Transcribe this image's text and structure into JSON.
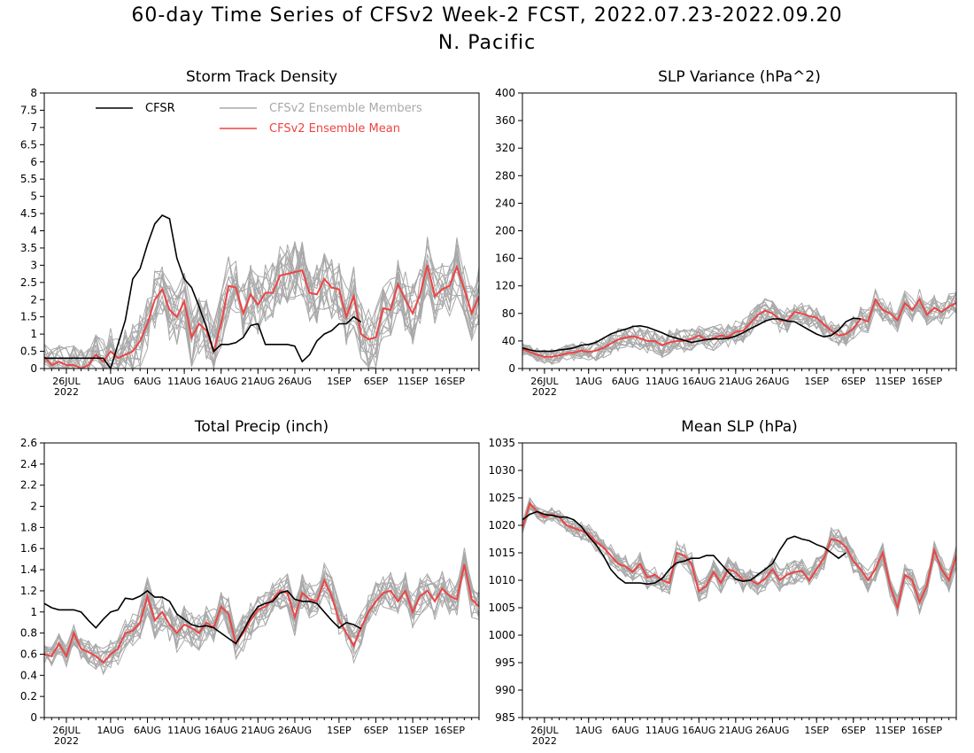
{
  "page": {
    "title_line1": "60-day Time Series of CFSv2 Week-2 FCST, 2022.07.23-2022.09.20",
    "title_line2": "N. Pacific"
  },
  "colors": {
    "cfsr": "#000000",
    "members": "#a9a9a9",
    "mean": "#ee4444",
    "axis": "#000000"
  },
  "chart_data": [
    {
      "type": "line",
      "title": "Storm Track Density",
      "ylim": [
        0,
        8
      ],
      "yticks": [
        0,
        0.5,
        1,
        1.5,
        2,
        2.5,
        3,
        3.5,
        4,
        4.5,
        5,
        5.5,
        6,
        6.5,
        7,
        7.5,
        8
      ],
      "xlim": [
        0,
        59
      ],
      "xticks": [
        {
          "x": 3,
          "label": "26JUL",
          "sub": "2022"
        },
        {
          "x": 9,
          "label": "1AUG"
        },
        {
          "x": 14,
          "label": "6AUG"
        },
        {
          "x": 19,
          "label": "11AUG"
        },
        {
          "x": 24,
          "label": "16AUG"
        },
        {
          "x": 29,
          "label": "21AUG"
        },
        {
          "x": 34,
          "label": "26AUG"
        },
        {
          "x": 40,
          "label": "1SEP"
        },
        {
          "x": 45,
          "label": "6SEP"
        },
        {
          "x": 50,
          "label": "11SEP"
        },
        {
          "x": 55,
          "label": "16SEP"
        }
      ],
      "legend": {
        "placement": "top",
        "entries": [
          {
            "label": "CFSR",
            "color": "#000000"
          },
          {
            "label": "CFSv2 Ensemble Members",
            "color": "#a9a9a9"
          },
          {
            "label": "CFSv2 Ensemble Mean",
            "color": "#ee4444"
          }
        ]
      },
      "cfsr": [
        0.3,
        0.3,
        0.3,
        0.3,
        0.3,
        0.3,
        0.3,
        0.3,
        0.3,
        0,
        0.7,
        1.4,
        2.6,
        2.9,
        3.6,
        4.2,
        4.45,
        4.35,
        3.2,
        2.6,
        2.35,
        1.8,
        1.2,
        0.5,
        0.7,
        0.7,
        0.75,
        0.9,
        1.25,
        1.3,
        0.7,
        0.7,
        0.7,
        0.7,
        0.65,
        0.2,
        0.4,
        0.8,
        1.0,
        1.1,
        1.3,
        1.3,
        1.5,
        1.35
      ],
      "mean": [
        0.35,
        0.1,
        0.2,
        0.1,
        0.1,
        0.0,
        0.1,
        0.4,
        0.2,
        0.5,
        0.3,
        0.4,
        0.5,
        0.8,
        1.3,
        2.0,
        2.3,
        1.7,
        1.5,
        1.95,
        0.9,
        1.3,
        1.1,
        0.5,
        1.3,
        2.4,
        2.35,
        1.6,
        2.15,
        1.85,
        2.2,
        2.2,
        2.7,
        2.75,
        2.8,
        2.85,
        2.2,
        2.15,
        2.6,
        2.35,
        2.3,
        1.5,
        2.1,
        1.0,
        0.85,
        0.9,
        1.75,
        1.7,
        2.45,
        2.0,
        1.6,
        2.15,
        3.0,
        2.1,
        2.3,
        2.4,
        2.95,
        2.3,
        1.6,
        2.1
      ],
      "members_spread": 0.9,
      "members_count": 16
    },
    {
      "type": "line",
      "title": "SLP Variance (hPa^2)",
      "ylim": [
        0,
        400
      ],
      "yticks": [
        0,
        40,
        80,
        120,
        160,
        200,
        240,
        280,
        320,
        360,
        400
      ],
      "xlim": [
        0,
        59
      ],
      "xticks": [
        {
          "x": 3,
          "label": "26JUL",
          "sub": "2022"
        },
        {
          "x": 9,
          "label": "1AUG"
        },
        {
          "x": 14,
          "label": "6AUG"
        },
        {
          "x": 19,
          "label": "11AUG"
        },
        {
          "x": 24,
          "label": "16AUG"
        },
        {
          "x": 29,
          "label": "21AUG"
        },
        {
          "x": 34,
          "label": "26AUG"
        },
        {
          "x": 40,
          "label": "1SEP"
        },
        {
          "x": 45,
          "label": "6SEP"
        },
        {
          "x": 50,
          "label": "11SEP"
        },
        {
          "x": 55,
          "label": "16SEP"
        }
      ],
      "cfsr": [
        30,
        27,
        25,
        25,
        25,
        27,
        28,
        30,
        34,
        35,
        38,
        44,
        50,
        54,
        57,
        61,
        62,
        60,
        56,
        52,
        47,
        44,
        41,
        38,
        40,
        42,
        43,
        43,
        44,
        47,
        52,
        58,
        63,
        69,
        72,
        72,
        69,
        68,
        62,
        56,
        50,
        46,
        48,
        56,
        68,
        73,
        72
      ],
      "mean": [
        28,
        24,
        20,
        17,
        17,
        19,
        22,
        23,
        26,
        24,
        26,
        30,
        36,
        42,
        45,
        47,
        44,
        40,
        40,
        34,
        38,
        40,
        40,
        43,
        48,
        42,
        44,
        48,
        46,
        53,
        55,
        66,
        78,
        84,
        80,
        70,
        70,
        82,
        80,
        76,
        74,
        64,
        55,
        48,
        50,
        58,
        72,
        68,
        100,
        85,
        80,
        70,
        95,
        85,
        100,
        78,
        88,
        82,
        90,
        95
      ],
      "members_spread": 18,
      "members_count": 16
    },
    {
      "type": "line",
      "title": "Total Precip (inch)",
      "ylim": [
        0,
        2.6
      ],
      "yticks": [
        0,
        0.2,
        0.4,
        0.6,
        0.8,
        1,
        1.2,
        1.4,
        1.6,
        1.8,
        2,
        2.2,
        2.4,
        2.6
      ],
      "xlim": [
        0,
        59
      ],
      "xticks": [
        {
          "x": 3,
          "label": "26JUL",
          "sub": "2022"
        },
        {
          "x": 9,
          "label": "1AUG"
        },
        {
          "x": 14,
          "label": "6AUG"
        },
        {
          "x": 19,
          "label": "11AUG"
        },
        {
          "x": 24,
          "label": "16AUG"
        },
        {
          "x": 29,
          "label": "21AUG"
        },
        {
          "x": 34,
          "label": "26AUG"
        },
        {
          "x": 40,
          "label": "1SEP"
        },
        {
          "x": 45,
          "label": "6SEP"
        },
        {
          "x": 50,
          "label": "11SEP"
        },
        {
          "x": 55,
          "label": "16SEP"
        }
      ],
      "cfsr": [
        1.08,
        1.04,
        1.02,
        1.02,
        1.02,
        1.0,
        0.92,
        0.85,
        0.93,
        1.0,
        1.02,
        1.13,
        1.12,
        1.15,
        1.2,
        1.14,
        1.14,
        1.1,
        0.98,
        0.93,
        0.88,
        0.86,
        0.87,
        0.85,
        0.8,
        0.75,
        0.7,
        0.82,
        0.95,
        1.05,
        1.08,
        1.1,
        1.18,
        1.2,
        1.12,
        1.1,
        1.1,
        1.08,
        1.0,
        0.92,
        0.85,
        0.9,
        0.88,
        0.84
      ],
      "mean": [
        0.6,
        0.58,
        0.7,
        0.58,
        0.8,
        0.65,
        0.62,
        0.58,
        0.52,
        0.6,
        0.65,
        0.8,
        0.82,
        0.9,
        1.15,
        0.92,
        1.0,
        0.88,
        0.8,
        0.88,
        0.85,
        0.8,
        0.9,
        0.85,
        1.05,
        0.98,
        0.7,
        0.8,
        0.92,
        1.02,
        1.05,
        1.12,
        1.2,
        1.18,
        0.95,
        1.18,
        1.12,
        1.1,
        1.3,
        1.15,
        0.92,
        0.8,
        0.68,
        0.85,
        1.0,
        1.1,
        1.18,
        1.2,
        1.1,
        1.2,
        1.0,
        1.15,
        1.2,
        1.1,
        1.22,
        1.15,
        1.12,
        1.45,
        1.12,
        1.05
      ],
      "members_spread": 0.18,
      "members_count": 16
    },
    {
      "type": "line",
      "title": "Mean SLP (hPa)",
      "ylim": [
        985,
        1035
      ],
      "yticks": [
        985,
        990,
        995,
        1000,
        1005,
        1010,
        1015,
        1020,
        1025,
        1030,
        1035
      ],
      "xlim": [
        0,
        59
      ],
      "xticks": [
        {
          "x": 3,
          "label": "26JUL",
          "sub": "2022"
        },
        {
          "x": 9,
          "label": "1AUG"
        },
        {
          "x": 14,
          "label": "6AUG"
        },
        {
          "x": 19,
          "label": "11AUG"
        },
        {
          "x": 24,
          "label": "16AUG"
        },
        {
          "x": 29,
          "label": "21AUG"
        },
        {
          "x": 34,
          "label": "26AUG"
        },
        {
          "x": 40,
          "label": "1SEP"
        },
        {
          "x": 45,
          "label": "6SEP"
        },
        {
          "x": 50,
          "label": "11SEP"
        },
        {
          "x": 55,
          "label": "16SEP"
        }
      ],
      "cfsr": [
        1021,
        1022,
        1022.5,
        1022,
        1021.8,
        1021.5,
        1021.5,
        1021,
        1019.8,
        1018,
        1016.5,
        1014.5,
        1012,
        1010.5,
        1009.5,
        1009.5,
        1009.5,
        1009.3,
        1009.5,
        1010.3,
        1012,
        1013.2,
        1013.5,
        1014,
        1014,
        1014.5,
        1014.5,
        1013,
        1011.5,
        1010.2,
        1009.8,
        1010,
        1011,
        1012,
        1013,
        1015.5,
        1017.5,
        1018,
        1017.5,
        1017.2,
        1016.5,
        1016,
        1015,
        1014,
        1015
      ],
      "mean": [
        1019.5,
        1024,
        1022.5,
        1021.5,
        1022,
        1021.5,
        1020,
        1019.5,
        1019,
        1018.5,
        1017,
        1016,
        1014.5,
        1013,
        1012.5,
        1011.5,
        1013,
        1010.5,
        1011,
        1010,
        1009.5,
        1015,
        1014.5,
        1013,
        1008,
        1009,
        1011.5,
        1009.5,
        1012,
        1011.5,
        1010,
        1010,
        1009.3,
        1010.3,
        1012,
        1010,
        1011,
        1011.5,
        1011.7,
        1010,
        1012,
        1014,
        1017.5,
        1017.2,
        1016,
        1013.5,
        1012,
        1010,
        1012,
        1015,
        1009,
        1005,
        1011,
        1010,
        1006,
        1009,
        1015.5,
        1012,
        1010,
        1014.5
      ],
      "members_spread": 2.2,
      "members_count": 16
    }
  ]
}
